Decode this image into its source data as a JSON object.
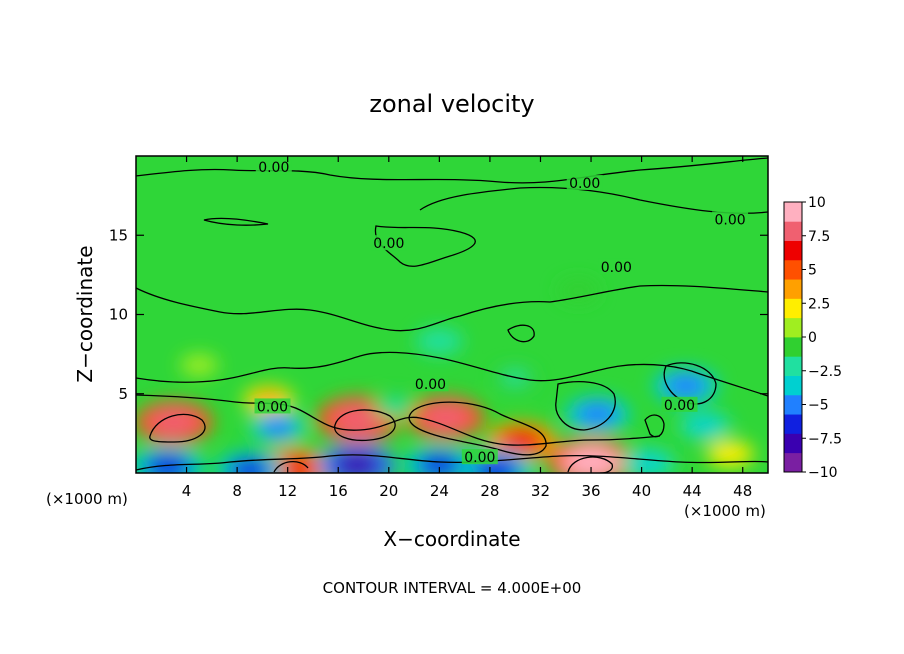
{
  "chart_data": {
    "type": "heatmap",
    "title": "zonal velocity",
    "xlabel": "X−coordinate",
    "ylabel": "Z−coordinate",
    "x_unit_left": "(×1000 m)",
    "x_unit_right": "(×1000 m)",
    "footer": "CONTOUR INTERVAL = 4.000E+00",
    "xlim": [
      0,
      50
    ],
    "ylim": [
      0,
      20
    ],
    "x_ticks": [
      "4",
      "8",
      "12",
      "16",
      "20",
      "24",
      "28",
      "32",
      "36",
      "40",
      "44",
      "48"
    ],
    "x_tick_values": [
      4,
      8,
      12,
      16,
      20,
      24,
      28,
      32,
      36,
      40,
      44,
      48
    ],
    "y_ticks": [
      "5",
      "10",
      "15"
    ],
    "y_tick_values": [
      5,
      10,
      15
    ],
    "colorbar": {
      "range": [
        -10,
        10
      ],
      "labels": [
        "10",
        "7.5",
        "5",
        "2.5",
        "0",
        "−2.5",
        "−5",
        "−7.5",
        "−10"
      ],
      "label_values": [
        10,
        7.5,
        5,
        2.5,
        0,
        -2.5,
        -5,
        -7.5,
        -10
      ],
      "colors": [
        "#7a1fa2",
        "#3a00b0",
        "#1020e0",
        "#2080ff",
        "#00d0d0",
        "#20e0a0",
        "#30d030",
        "#a0ee20",
        "#ffee00",
        "#ffa000",
        "#ff5000",
        "#ee0000",
        "#f06070",
        "#ffb0c0"
      ]
    },
    "contour_labels": [
      {
        "text": "0.00",
        "x": 10.9,
        "z": 19.3
      },
      {
        "text": "0.00",
        "x": 35.5,
        "z": 18.3
      },
      {
        "text": "0.00",
        "x": 47.0,
        "z": 16.0
      },
      {
        "text": "0.00",
        "x": 20.0,
        "z": 14.5
      },
      {
        "text": "0.00",
        "x": 38.0,
        "z": 13.0
      },
      {
        "text": "0.00",
        "x": 10.8,
        "z": 4.2
      },
      {
        "text": "0.00",
        "x": 23.3,
        "z": 5.6
      },
      {
        "text": "0.00",
        "x": 43.0,
        "z": 4.3
      },
      {
        "text": "0.00",
        "x": 27.2,
        "z": 1.0
      }
    ],
    "anomalies": [
      {
        "x": 3.0,
        "z": 3.2,
        "value": 7.5
      },
      {
        "x": 17.6,
        "z": 3.4,
        "value": 8.5
      },
      {
        "x": 24.5,
        "z": 3.5,
        "value": 7.5
      },
      {
        "x": 30.5,
        "z": 2.0,
        "value": 6.5
      },
      {
        "x": 36.0,
        "z": 0.7,
        "value": 9.0
      },
      {
        "x": 10.5,
        "z": 4.6,
        "value": 3.0
      },
      {
        "x": 12.5,
        "z": 0.3,
        "value": 7.0
      },
      {
        "x": 2.5,
        "z": 0.4,
        "value": -7.0
      },
      {
        "x": 9.0,
        "z": 0.2,
        "value": -6.0
      },
      {
        "x": 17.5,
        "z": 0.5,
        "value": -7.5
      },
      {
        "x": 24.0,
        "z": 0.5,
        "value": -6.5
      },
      {
        "x": 28.5,
        "z": 0.2,
        "value": -7.0
      },
      {
        "x": 11.2,
        "z": 2.9,
        "value": -4.5
      },
      {
        "x": 36.5,
        "z": 3.7,
        "value": -5.5
      },
      {
        "x": 43.5,
        "z": 5.5,
        "value": -5.5
      },
      {
        "x": 45.0,
        "z": 3.0,
        "value": -3.5
      },
      {
        "x": 24.0,
        "z": 8.3,
        "value": -2.5
      },
      {
        "x": 40.5,
        "z": 0.6,
        "value": -4.0
      },
      {
        "x": 47.0,
        "z": 1.2,
        "value": 2.5
      },
      {
        "x": 20.5,
        "z": 4.2,
        "value": -2.0
      },
      {
        "x": 35.0,
        "z": 11.5,
        "value": -1.2
      },
      {
        "x": 5.0,
        "z": 6.8,
        "value": 1.0
      },
      {
        "x": 30.0,
        "z": 6.0,
        "value": -1.5
      }
    ]
  }
}
